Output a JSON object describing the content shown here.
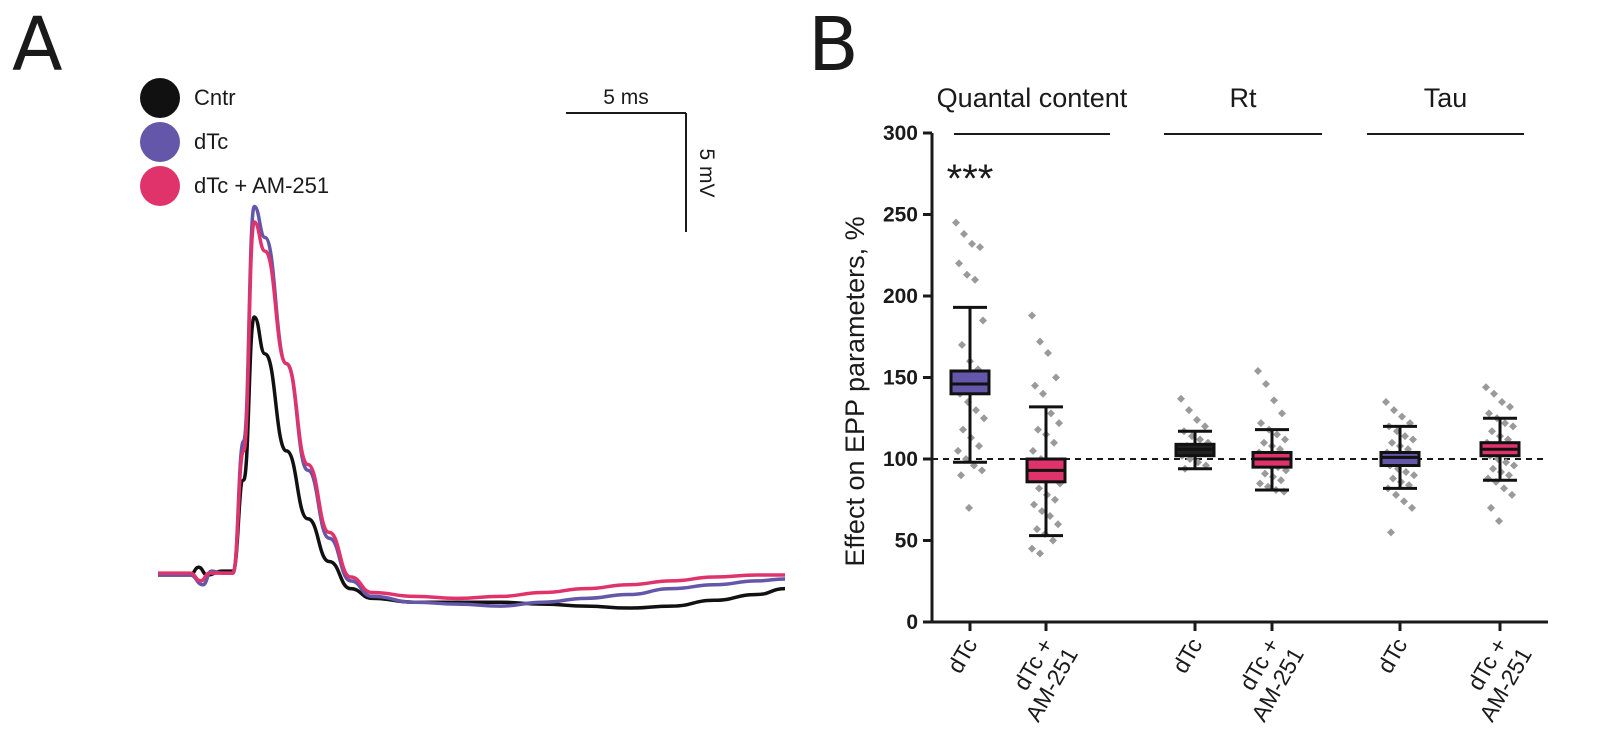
{
  "panels": {
    "a_label": "A",
    "b_label": "B"
  },
  "legend": [
    {
      "label": "Cntr",
      "color": "#111111"
    },
    {
      "label": "dTc",
      "color": "#6456a8"
    },
    {
      "label": "dTc + AM-251",
      "color": "#e0336b"
    }
  ],
  "scale_bar": {
    "time_label": "5 ms",
    "voltage_label": "5 mV"
  },
  "chart_data": [
    {
      "type": "line",
      "panel": "A",
      "series": [
        {
          "name": "Cntr",
          "color": "#111111",
          "x": [
            0.0,
            1.5,
            1.9,
            2.3,
            3.0,
            3.5,
            4.0,
            4.5,
            5.0,
            6.0,
            7.0,
            8.0,
            9.0,
            10.0,
            12.0,
            14.0,
            16.0,
            18.0,
            20.0,
            22.0,
            24.0,
            26.0,
            28.0,
            29.3
          ],
          "y": [
            0.1,
            0.1,
            0.5,
            0.1,
            0.3,
            0.3,
            5.0,
            13.4,
            11.5,
            6.5,
            3.0,
            0.8,
            -0.6,
            -1.1,
            -1.3,
            -1.3,
            -1.3,
            -1.4,
            -1.5,
            -1.6,
            -1.5,
            -1.2,
            -0.9,
            -0.6
          ]
        },
        {
          "name": "dTc",
          "color": "#6456a8",
          "x": [
            0.0,
            1.5,
            2.1,
            2.5,
            3.0,
            3.5,
            4.0,
            4.5,
            5.0,
            6.0,
            7.0,
            8.0,
            9.0,
            10.0,
            12.0,
            14.0,
            16.0,
            18.0,
            20.0,
            22.0,
            24.0,
            26.0,
            28.0,
            29.3
          ],
          "y": [
            0.1,
            0.1,
            -0.4,
            0.3,
            0.2,
            0.2,
            7.0,
            19.1,
            17.5,
            11.0,
            5.5,
            2.0,
            -0.2,
            -1.0,
            -1.3,
            -1.4,
            -1.5,
            -1.3,
            -1.1,
            -0.9,
            -0.6,
            -0.4,
            -0.2,
            -0.1
          ]
        },
        {
          "name": "dTc + AM-251",
          "color": "#e0336b",
          "x": [
            0.0,
            1.5,
            2.0,
            2.4,
            3.0,
            3.5,
            4.0,
            4.5,
            5.0,
            6.0,
            7.0,
            8.0,
            9.0,
            10.0,
            12.0,
            14.0,
            16.0,
            18.0,
            20.0,
            22.0,
            24.0,
            26.0,
            28.0,
            29.3
          ],
          "y": [
            0.2,
            0.2,
            -0.2,
            0.2,
            0.2,
            0.2,
            6.5,
            18.3,
            16.8,
            11.0,
            5.8,
            2.3,
            0.0,
            -0.8,
            -1.0,
            -1.1,
            -1.0,
            -0.8,
            -0.6,
            -0.4,
            -0.2,
            0.0,
            0.1,
            0.1
          ]
        }
      ]
    },
    {
      "type": "box",
      "panel": "B",
      "ylabel": "Effect on EPP parameters, %",
      "ylim": [
        0,
        300
      ],
      "yticks": [
        0,
        50,
        100,
        150,
        200,
        250,
        300
      ],
      "reference_line": 100,
      "groups": [
        {
          "title": "Quantal content",
          "significance": "***"
        },
        {
          "title": "Rt",
          "significance": ""
        },
        {
          "title": "Tau",
          "significance": ""
        }
      ],
      "boxes": [
        {
          "group": 0,
          "category": "dTc",
          "color": "#6456a8",
          "whisker_low": 98,
          "q1": 140,
          "median": 146,
          "q3": 154,
          "whisker_high": 193,
          "points": [
            245,
            238,
            232,
            230,
            220,
            213,
            210,
            185,
            170,
            160,
            155,
            150,
            148,
            145,
            142,
            140,
            135,
            130,
            125,
            118,
            113,
            108,
            105,
            100,
            96,
            93,
            90,
            70
          ]
        },
        {
          "group": 0,
          "category": "dTc +\nAM-251",
          "color": "#e0336b",
          "whisker_low": 53,
          "q1": 86,
          "median": 93,
          "q3": 100,
          "whisker_high": 132,
          "points": [
            188,
            172,
            165,
            150,
            145,
            140,
            128,
            122,
            118,
            115,
            110,
            105,
            100,
            97,
            95,
            92,
            90,
            88,
            85,
            82,
            78,
            75,
            72,
            68,
            65,
            60,
            57,
            54,
            50,
            45,
            42
          ]
        },
        {
          "group": 1,
          "category": "dTc",
          "color": "#222222",
          "whisker_low": 94,
          "q1": 102,
          "median": 106,
          "q3": 109,
          "whisker_high": 117,
          "points": [
            137,
            130,
            124,
            120,
            117,
            114,
            112,
            110,
            108,
            106,
            104,
            102,
            100,
            98,
            96,
            94
          ]
        },
        {
          "group": 1,
          "category": "dTc +\nAM-251",
          "color": "#e0336b",
          "whisker_low": 81,
          "q1": 95,
          "median": 100,
          "q3": 104,
          "whisker_high": 118,
          "points": [
            154,
            146,
            136,
            128,
            122,
            118,
            115,
            112,
            110,
            108,
            106,
            104,
            102,
            100,
            99,
            98,
            96,
            95,
            93,
            91,
            89,
            87,
            85,
            83,
            81,
            80
          ]
        },
        {
          "group": 2,
          "category": "dTc",
          "color": "#6456a8",
          "whisker_low": 82,
          "q1": 96,
          "median": 101,
          "q3": 104,
          "whisker_high": 120,
          "points": [
            135,
            130,
            126,
            122,
            120,
            117,
            114,
            112,
            110,
            108,
            106,
            104,
            102,
            100,
            98,
            96,
            94,
            92,
            90,
            88,
            86,
            84,
            82,
            78,
            74,
            70,
            55
          ]
        },
        {
          "group": 2,
          "category": "dTc +\nAM-251",
          "color": "#e0336b",
          "whisker_low": 87,
          "q1": 102,
          "median": 106,
          "q3": 110,
          "whisker_high": 125,
          "points": [
            144,
            140,
            135,
            132,
            128,
            125,
            122,
            120,
            117,
            114,
            112,
            110,
            108,
            106,
            104,
            102,
            100,
            98,
            96,
            94,
            92,
            90,
            88,
            86,
            82,
            78,
            70,
            62
          ]
        }
      ]
    }
  ]
}
